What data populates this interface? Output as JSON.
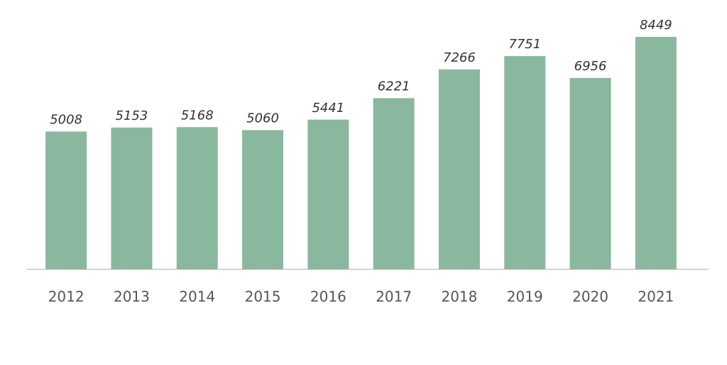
{
  "chart_data": {
    "type": "bar",
    "categories": [
      "2012",
      "2013",
      "2014",
      "2015",
      "2016",
      "2017",
      "2018",
      "2019",
      "2020",
      "2021"
    ],
    "values": [
      5008,
      5153,
      5168,
      5060,
      5441,
      6221,
      7266,
      7751,
      6956,
      8449
    ],
    "color": "#8ab89e"
  }
}
